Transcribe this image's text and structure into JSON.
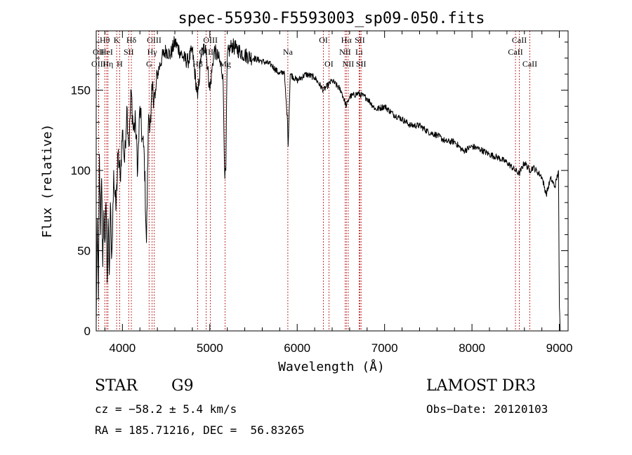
{
  "chart_data": {
    "type": "line",
    "title": "spec-55930-F5593003_sp09-050.fits",
    "xlabel": "Wavelength (Å)",
    "ylabel": "Flux (relative)",
    "xlim": [
      3700,
      9100
    ],
    "ylim": [
      0,
      187
    ],
    "x_ticks": [
      4000,
      5000,
      6000,
      7000,
      8000,
      9000
    ],
    "y_ticks": [
      0,
      50,
      100,
      150
    ],
    "x_tick_labels": [
      "4000",
      "5000",
      "6000",
      "7000",
      "8000",
      "9000"
    ],
    "y_tick_labels": [
      "0",
      "50",
      "100",
      "150"
    ],
    "series": [
      {
        "name": "spectrum",
        "x": [
          3700,
          3712,
          3725,
          3737,
          3750,
          3762,
          3775,
          3787,
          3800,
          3812,
          3825,
          3837,
          3850,
          3862,
          3875,
          3887,
          3900,
          3925,
          3950,
          3975,
          4000,
          4025,
          4050,
          4075,
          4100,
          4125,
          4150,
          4175,
          4200,
          4225,
          4250,
          4275,
          4300,
          4325,
          4340,
          4375,
          4400,
          4450,
          4500,
          4550,
          4600,
          4650,
          4700,
          4750,
          4800,
          4861,
          4900,
          4950,
          5000,
          5050,
          5100,
          5150,
          5172,
          5183,
          5200,
          5250,
          5300,
          5400,
          5500,
          5600,
          5700,
          5800,
          5850,
          5890,
          5896,
          5920,
          6000,
          6100,
          6200,
          6300,
          6400,
          6500,
          6563,
          6600,
          6700,
          6800,
          6900,
          7000,
          7100,
          7200,
          7300,
          7400,
          7500,
          7600,
          7700,
          7800,
          7900,
          8000,
          8100,
          8200,
          8300,
          8400,
          8498,
          8542,
          8600,
          8662,
          8700,
          8800,
          8850,
          8900,
          8950,
          8990,
          9000,
          9010
        ],
        "y": [
          5,
          70,
          20,
          110,
          60,
          95,
          40,
          75,
          55,
          80,
          30,
          70,
          35,
          80,
          45,
          60,
          100,
          75,
          110,
          95,
          125,
          105,
          140,
          115,
          150,
          125,
          130,
          100,
          140,
          120,
          110,
          55,
          135,
          130,
          150,
          145,
          160,
          170,
          175,
          172,
          180,
          175,
          170,
          168,
          175,
          145,
          172,
          178,
          150,
          175,
          170,
          160,
          95,
          100,
          172,
          178,
          176,
          172,
          170,
          168,
          166,
          160,
          162,
          130,
          115,
          160,
          156,
          160,
          158,
          150,
          156,
          150,
          140,
          146,
          148,
          145,
          138,
          140,
          135,
          132,
          128,
          128,
          124,
          122,
          118,
          118,
          112,
          115,
          113,
          110,
          108,
          105,
          100,
          98,
          105,
          100,
          102,
          96,
          85,
          95,
          90,
          100,
          15,
          0
        ],
        "color": "#000000"
      }
    ],
    "line_markers": [
      {
        "label": "Hθ",
        "x": 3798,
        "row": 1
      },
      {
        "label": "OII",
        "x": 3727,
        "row": 2
      },
      {
        "label": "OIII",
        "x": 3727,
        "row": 3
      },
      {
        "label": "HeI",
        "x": 3820,
        "row": 2
      },
      {
        "label": "Hη",
        "x": 3835,
        "row": 3
      },
      {
        "label": "K",
        "x": 3934,
        "row": 1
      },
      {
        "label": "H",
        "x": 3969,
        "row": 3
      },
      {
        "label": "SII",
        "x": 4072,
        "row": 2
      },
      {
        "label": "Hδ",
        "x": 4102,
        "row": 1
      },
      {
        "label": "OIII",
        "x": 4363,
        "row": 1
      },
      {
        "label": "Hγ",
        "x": 4340,
        "row": 2
      },
      {
        "label": "G",
        "x": 4305,
        "row": 3
      },
      {
        "label": "OIII",
        "x": 5007,
        "row": 1
      },
      {
        "label": "OIII",
        "x": 4959,
        "row": 2
      },
      {
        "label": "Hβ",
        "x": 4861,
        "row": 3
      },
      {
        "label": "Mg",
        "x": 5175,
        "row": 3
      },
      {
        "label": "Na",
        "x": 5893,
        "row": 2
      },
      {
        "label": "OI",
        "x": 6300,
        "row": 1
      },
      {
        "label": "OI",
        "x": 6363,
        "row": 3
      },
      {
        "label": "Hα",
        "x": 6563,
        "row": 1
      },
      {
        "label": "NII",
        "x": 6548,
        "row": 2
      },
      {
        "label": "NII",
        "x": 6584,
        "row": 3
      },
      {
        "label": "SII",
        "x": 6717,
        "row": 1
      },
      {
        "label": "Li",
        "x": 6708,
        "row": 2
      },
      {
        "label": "SII",
        "x": 6731,
        "row": 3
      },
      {
        "label": "CaII",
        "x": 8542,
        "row": 1
      },
      {
        "label": "CaII",
        "x": 8498,
        "row": 2
      },
      {
        "label": "CaII",
        "x": 8662,
        "row": 3
      }
    ]
  },
  "info": {
    "class": "STAR",
    "subclass": "G9",
    "survey": "LAMOST DR3",
    "cz": "cz = −58.2 ± 5.4 km/s",
    "obs_date": "Obs−Date: 20120103",
    "coords": "RA = 185.71216, DEC =  56.83265"
  },
  "colors": {
    "spectrum": "#000000",
    "line_marker": "#b00000",
    "axes": "#000000"
  }
}
